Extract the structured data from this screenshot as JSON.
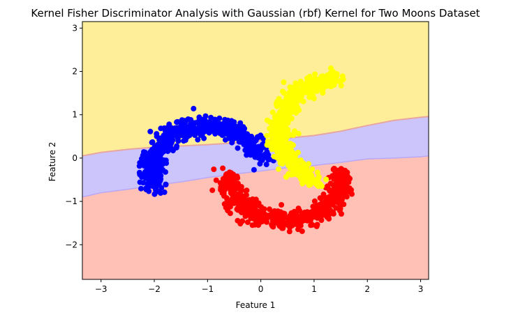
{
  "chart_data": {
    "type": "scatter",
    "title": "Kernel Fisher Discriminator Analysis with Gaussian (rbf) Kernel for Two Moons Dataset",
    "xlabel": "Feature 1",
    "ylabel": "Feature 2",
    "xlim": [
      -3.35,
      3.15
    ],
    "ylim": [
      -2.8,
      3.15
    ],
    "xticks": [
      -3,
      -2,
      -1,
      0,
      1,
      2,
      3
    ],
    "yticks": [
      -2,
      -1,
      0,
      1,
      2,
      3
    ],
    "xtick_labels": [
      "−3",
      "−2",
      "−1",
      "0",
      "1",
      "2",
      "3"
    ],
    "ytick_labels": [
      "−2",
      "−1",
      "0",
      "1",
      "2",
      "3"
    ],
    "grid": false,
    "legend": "none",
    "regions": [
      {
        "class": "yellow-region",
        "color": "#ffee99"
      },
      {
        "class": "blue-region",
        "color": "#ccc5fb"
      },
      {
        "class": "red-region",
        "color": "#ffc0b6"
      }
    ],
    "boundaries": {
      "upper": {
        "x": [
          -3.35,
          -3.0,
          -2.5,
          -2.0,
          -1.5,
          -1.0,
          -0.5,
          0.0,
          0.5,
          1.0,
          1.5,
          2.0,
          2.5,
          3.0,
          3.15
        ],
        "y": [
          0.05,
          0.13,
          0.2,
          0.25,
          0.28,
          0.31,
          0.35,
          0.4,
          0.46,
          0.52,
          0.62,
          0.75,
          0.87,
          0.94,
          0.96
        ]
      },
      "lower": {
        "x": [
          -3.35,
          -3.0,
          -2.5,
          -2.0,
          -1.5,
          -1.0,
          -0.5,
          0.0,
          0.5,
          1.0,
          1.5,
          2.0,
          2.5,
          3.0,
          3.15
        ],
        "y": [
          -0.9,
          -0.8,
          -0.72,
          -0.63,
          -0.55,
          -0.45,
          -0.37,
          -0.3,
          -0.22,
          -0.17,
          -0.1,
          -0.02,
          0.0,
          0.03,
          0.05
        ]
      }
    },
    "series": [
      {
        "color": "#0000ff",
        "description": "upper-left moon",
        "arc": {
          "cx": -1.0,
          "cy": -0.3,
          "rx": 1.05,
          "ry": 1.05,
          "t0": 0.28,
          "t1": 3.5
        },
        "count": 650,
        "noise": 0.11
      },
      {
        "color": "#ff0000",
        "description": "lower moon",
        "arc": {
          "cx": 0.45,
          "cy": -0.5,
          "rx": 1.05,
          "ry": 0.95,
          "t0": 3.05,
          "t1": 6.45
        },
        "count": 650,
        "noise": 0.11
      },
      {
        "color": "#ffff00",
        "description": "upper-right moon",
        "arc": {
          "cx": 1.45,
          "cy": 0.6,
          "rx": 1.1,
          "ry": 1.2,
          "t0": 1.6,
          "t1": 4.3
        },
        "count": 600,
        "noise": 0.1
      }
    ]
  }
}
